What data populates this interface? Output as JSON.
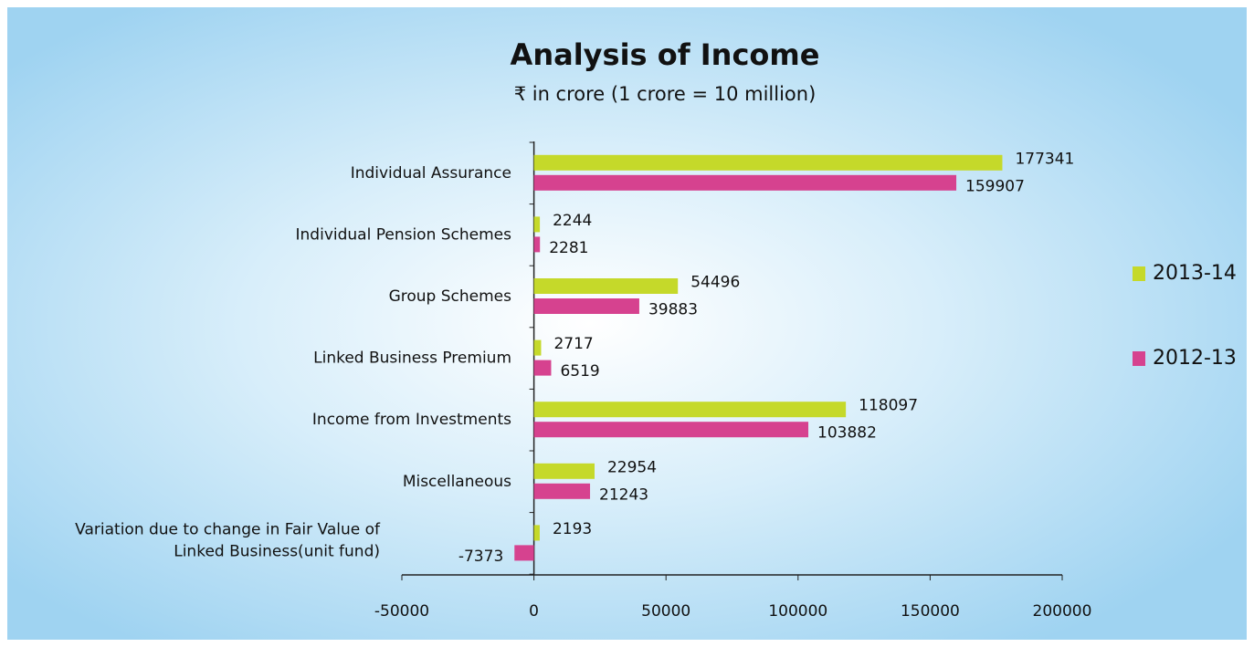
{
  "chart_data": {
    "type": "barh",
    "title": "Analysis of Income",
    "subtitle": "₹ in crore (1 crore = 10 million)",
    "categories": [
      "Individual Assurance",
      "Individual Pension Schemes",
      "Group Schemes",
      "Linked Business Premium",
      "Income from Investments",
      "Miscellaneous",
      "Variation due to change in Fair Value of\nLinked  Business(unit fund)"
    ],
    "series": [
      {
        "name": "2013-14",
        "color": "#c5d92a",
        "values": [
          177341,
          2244,
          54496,
          2717,
          118097,
          22954,
          2193
        ]
      },
      {
        "name": "2012-13",
        "color": "#d6428f",
        "values": [
          159907,
          2281,
          39883,
          6519,
          103882,
          21243,
          -7373
        ]
      }
    ],
    "xlim": [
      -50000,
      200000
    ],
    "xticks": [
      -50000,
      0,
      50000,
      100000,
      150000,
      200000
    ],
    "legend": "right"
  }
}
